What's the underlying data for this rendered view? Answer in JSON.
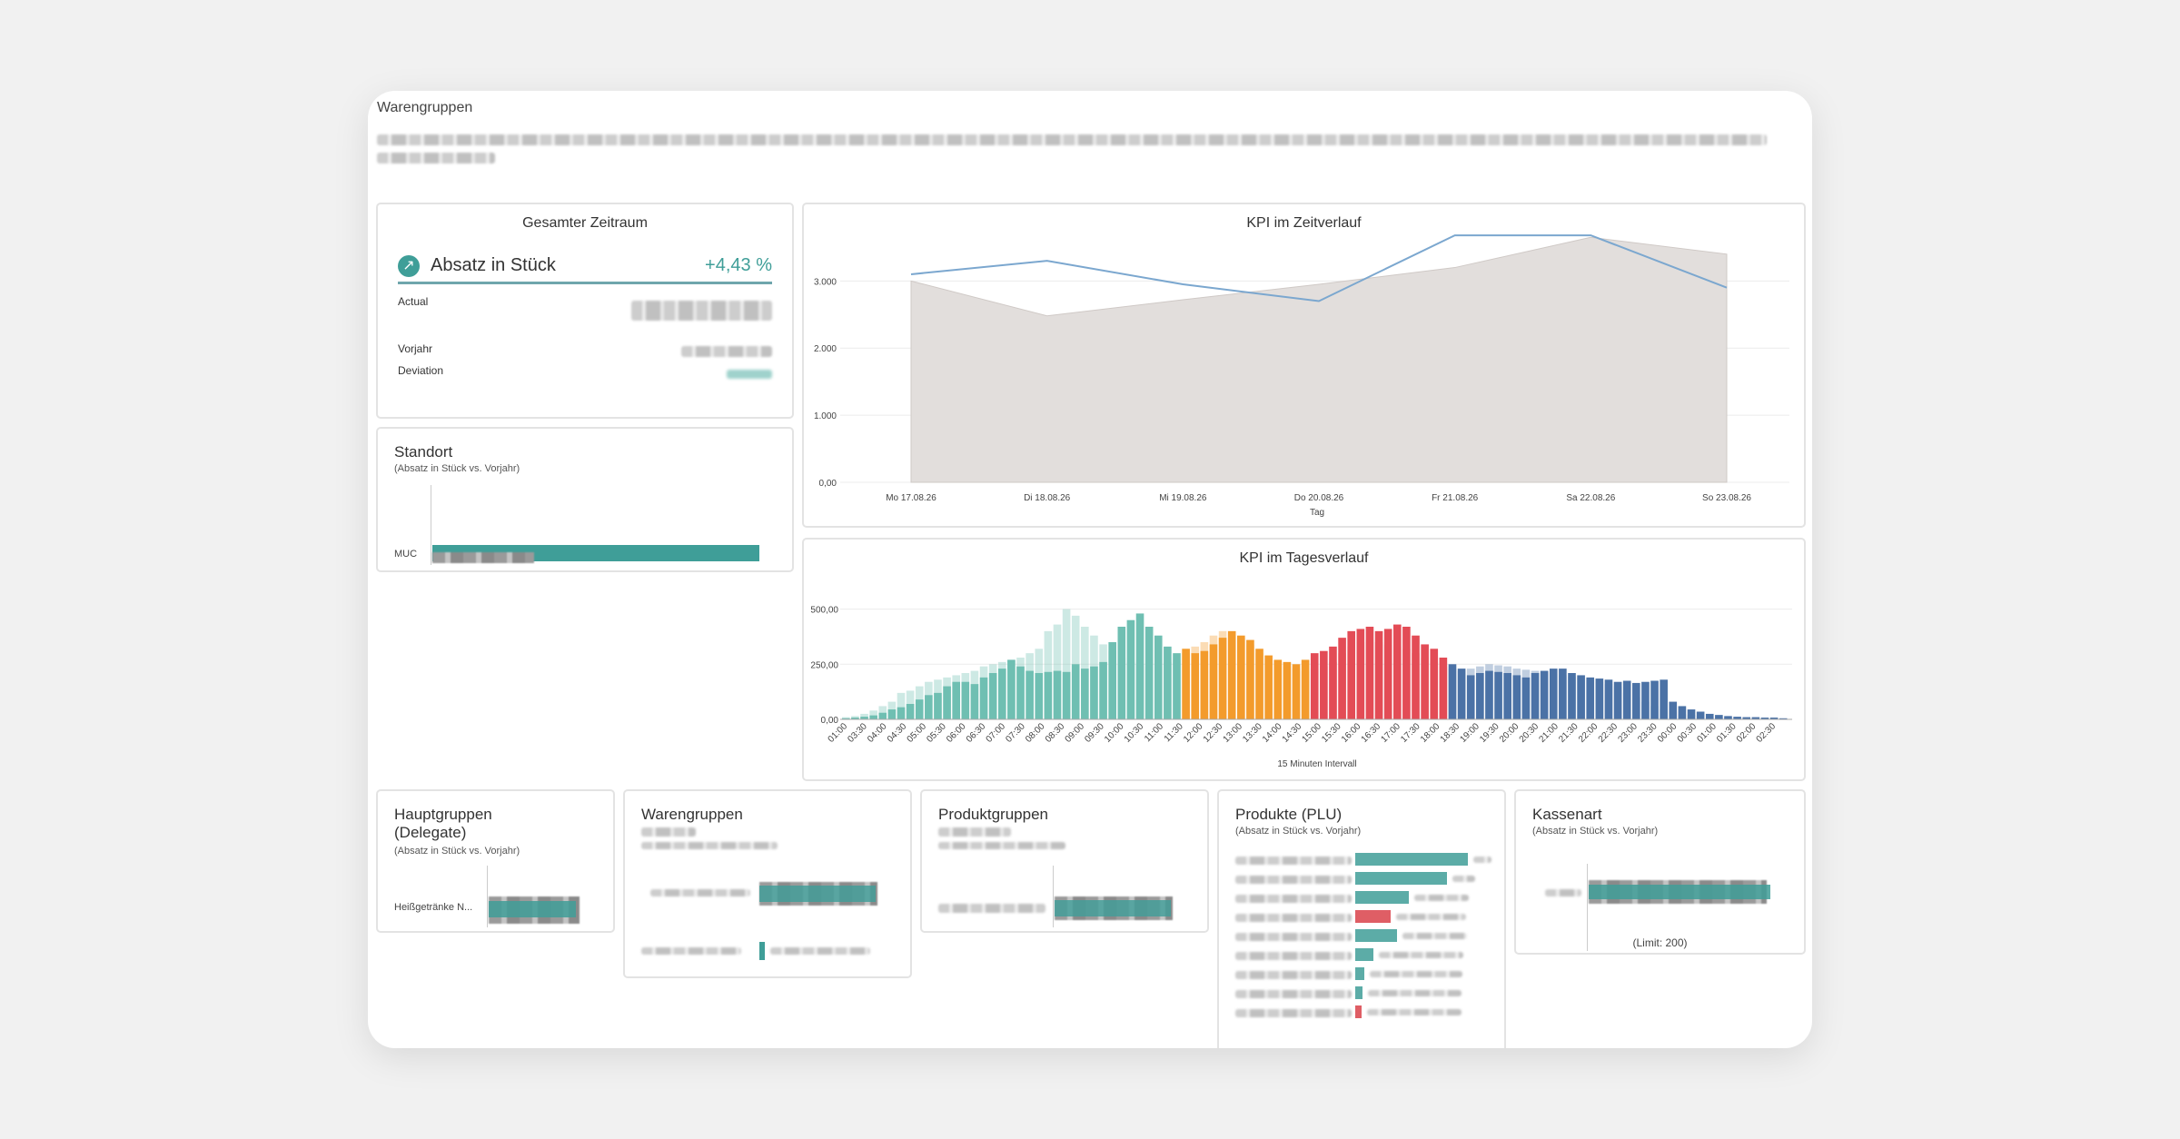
{
  "page": {
    "title": "Warengruppen"
  },
  "summary": {
    "title": "Gesamter Zeitraum",
    "kpi_name": "Absatz in Stück",
    "kpi_delta": "+4,43 %",
    "actual_label": "Actual",
    "prev_label": "Vorjahr",
    "deviation_label": "Deviation",
    "icon": "trend-up-arrow-icon",
    "accent_color": "#3f9e98"
  },
  "standort": {
    "title": "Standort",
    "subtitle": "(Absatz in Stück vs. Vorjahr)",
    "rows": [
      {
        "label": "MUC",
        "value_fraction": 0.86
      }
    ]
  },
  "zeitverlauf": {
    "chart_data": {
      "type": "area",
      "title": "KPI im Zeitverlauf",
      "xlabel": "Tag",
      "ylabel": "",
      "categories": [
        "Mo 17.08.26",
        "Di 18.08.26",
        "Mi 19.08.26",
        "Do 20.08.26",
        "Fr 21.08.26",
        "Sa 22.08.26",
        "So 23.08.26"
      ],
      "y_ticks": [
        "0,00",
        "1.000",
        "2.000",
        "3.000"
      ],
      "ylim": [
        0,
        3600
      ],
      "series": [
        {
          "kind": "area",
          "color": "#e2dedc",
          "values": [
            3000,
            2480,
            2720,
            2950,
            3200,
            3650,
            3400
          ]
        },
        {
          "kind": "line",
          "color": "#7ba7cf",
          "values": [
            3100,
            3300,
            2950,
            2700,
            3680,
            3680,
            2900
          ]
        }
      ]
    }
  },
  "tagesverlauf": {
    "chart_data": {
      "type": "bar",
      "title": "KPI im Tagesverlauf",
      "xlabel": "15 Minuten Intervall",
      "ylabel": "",
      "y_ticks": [
        "0,00",
        "250,00",
        "500,00"
      ],
      "ylim": [
        0,
        700
      ],
      "x_ticks": [
        "01:00",
        "03:30",
        "04:00",
        "04:30",
        "05:00",
        "05:30",
        "06:00",
        "06:30",
        "07:00",
        "07:30",
        "08:00",
        "08:30",
        "09:00",
        "09:30",
        "10:00",
        "10:30",
        "11:00",
        "11:30",
        "12:00",
        "12:30",
        "13:00",
        "13:30",
        "14:00",
        "14:30",
        "15:00",
        "15:30",
        "16:00",
        "16:30",
        "17:00",
        "17:30",
        "18:00",
        "18:30",
        "19:00",
        "19:30",
        "20:00",
        "20:30",
        "21:00",
        "21:30",
        "22:00",
        "22:30",
        "23:00",
        "23:30",
        "00:00",
        "00:30",
        "01:00",
        "01:30",
        "02:00",
        "02:30"
      ],
      "groups": [
        {
          "color": "#6fbfb2",
          "values": [
            5,
            8,
            12,
            18,
            30,
            45,
            55,
            70,
            90,
            110,
            120,
            150,
            170,
            170,
            160,
            190,
            210,
            230,
            270,
            240,
            220,
            210,
            215,
            220,
            215,
            250,
            230,
            240,
            260,
            350,
            420,
            450,
            480,
            420,
            380,
            330,
            300
          ]
        },
        {
          "color": "#f39b2c",
          "values": [
            320,
            300,
            310,
            340,
            370,
            400,
            380,
            360,
            320,
            290,
            270,
            260,
            250,
            270
          ]
        },
        {
          "color": "#e34c56",
          "values": [
            300,
            310,
            330,
            370,
            400,
            410,
            420,
            400,
            410,
            430,
            420,
            380,
            340,
            320,
            280
          ]
        },
        {
          "color": "#4b72a6",
          "values": [
            250,
            230,
            200,
            210,
            220,
            215,
            210,
            200,
            190,
            210,
            220,
            230,
            230,
            210,
            200,
            190,
            185,
            180,
            170,
            175,
            165,
            170,
            175,
            180,
            80,
            60,
            45,
            35,
            25,
            20,
            15,
            12,
            10,
            10,
            8,
            8,
            5
          ]
        }
      ],
      "prev_year": [
        10,
        15,
        25,
        40,
        60,
        80,
        120,
        130,
        150,
        170,
        180,
        190,
        200,
        210,
        220,
        240,
        250,
        260,
        270,
        280,
        300,
        320,
        400,
        430,
        500,
        470,
        420,
        380,
        340,
        310,
        280,
        260,
        250,
        240,
        240,
        260,
        270,
        300,
        330,
        350,
        380,
        400,
        390,
        370,
        340,
        300,
        270,
        250,
        240,
        230,
        220,
        230,
        240,
        260,
        300,
        330,
        350,
        360,
        350,
        340,
        330,
        320,
        300,
        280,
        260,
        240,
        230,
        220,
        230,
        240,
        250,
        245,
        240,
        230,
        225,
        220,
        210,
        205,
        200,
        195,
        190,
        180,
        170,
        160,
        150,
        120,
        100,
        80,
        60,
        45,
        35,
        25,
        20,
        15,
        12,
        10,
        8,
        5
      ]
    }
  },
  "hauptgruppen": {
    "title": "Hauptgruppen (Delegate)",
    "subtitle": "(Absatz in Stück vs. Vorjahr)",
    "rows": [
      {
        "label": "Heißgetränke N...",
        "value_fraction": 0.9
      }
    ]
  },
  "warengruppen": {
    "title": "Warengruppen"
  },
  "produktgruppen": {
    "title": "Produktgruppen"
  },
  "produkte": {
    "title": "Produkte (PLU)",
    "subtitle": "(Absatz in Stück vs. Vorjahr)",
    "rows": [
      {
        "value_fraction": 0.95,
        "status": "positive"
      },
      {
        "value_fraction": 0.78,
        "status": "positive"
      },
      {
        "value_fraction": 0.45,
        "status": "positive"
      },
      {
        "value_fraction": 0.3,
        "status": "negative"
      },
      {
        "value_fraction": 0.35,
        "status": "positive"
      },
      {
        "value_fraction": 0.15,
        "status": "positive"
      },
      {
        "value_fraction": 0.08,
        "status": "positive"
      },
      {
        "value_fraction": 0.06,
        "status": "positive"
      },
      {
        "value_fraction": 0.05,
        "status": "negative"
      }
    ]
  },
  "kassenart": {
    "title": "Kassenart",
    "subtitle": "(Absatz in Stück vs. Vorjahr)",
    "limit": "(Limit: 200)",
    "rows": [
      {
        "value_fraction": 0.98
      }
    ]
  }
}
